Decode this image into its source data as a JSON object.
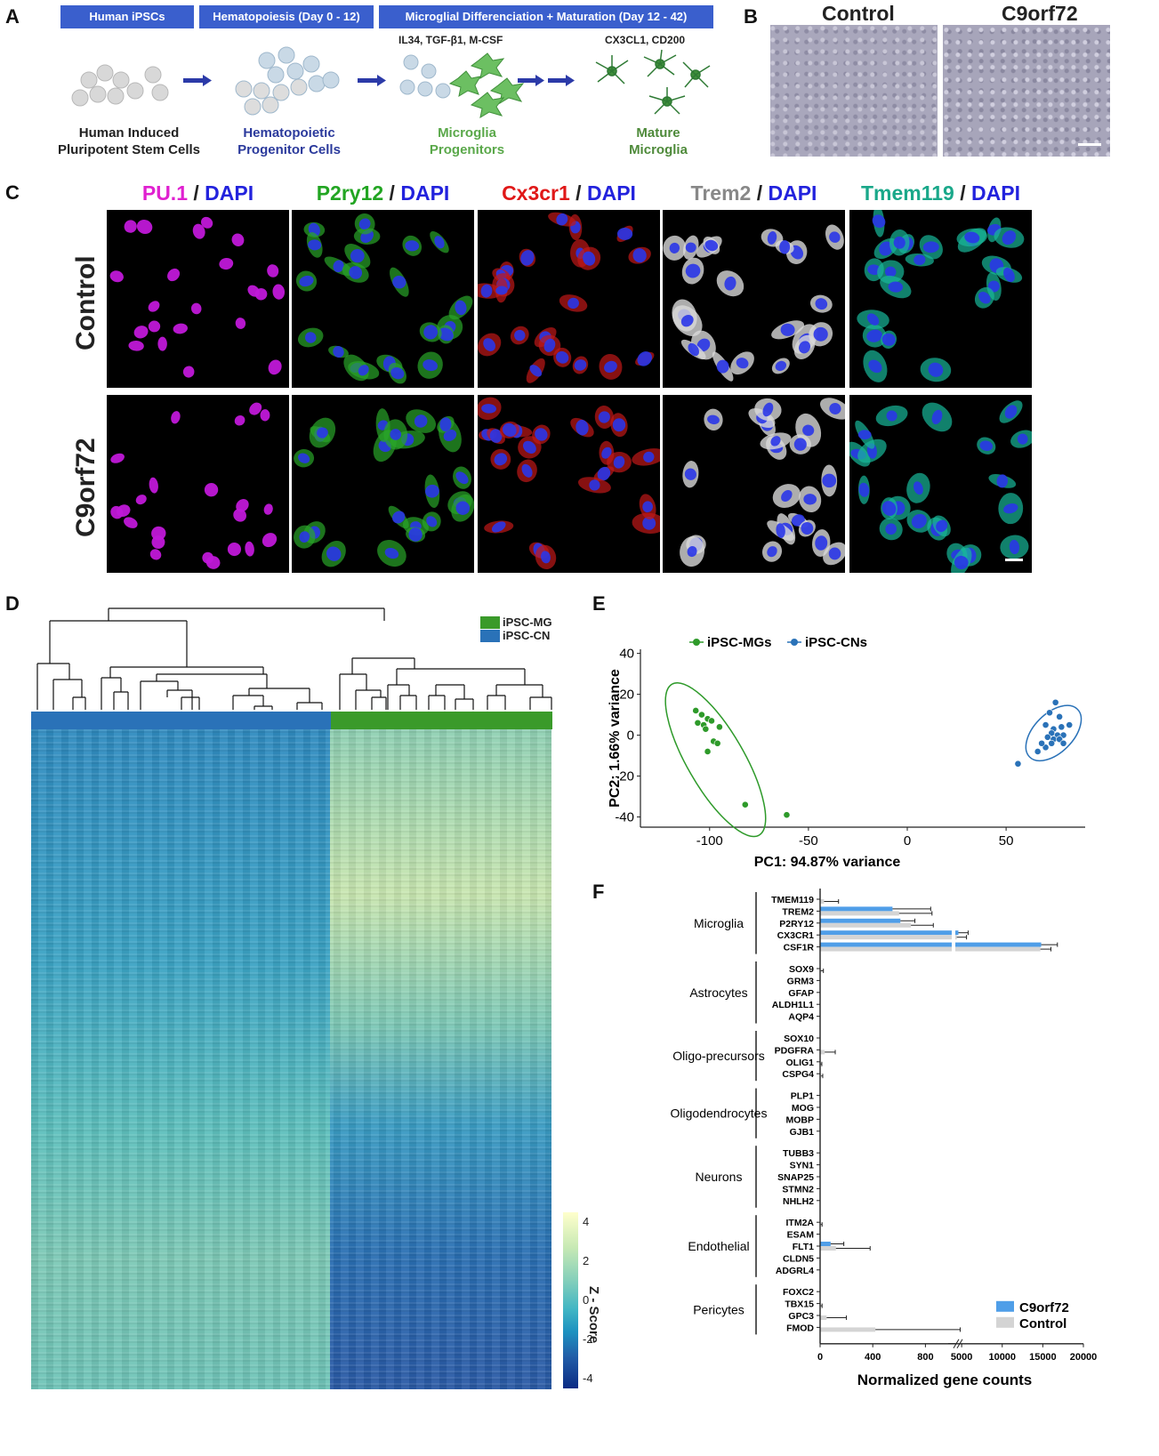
{
  "panels": {
    "A": "A",
    "B": "B",
    "C": "C",
    "D": "D",
    "E": "E",
    "F": "F"
  },
  "panelA": {
    "headers": [
      "Human iPSCs",
      "Hematopoiesis (Day 0 - 12)",
      "Microglial Differenciation + Maturation (Day 12 - 42)"
    ],
    "factors1": "IL34, TGF-β1, M-CSF",
    "factors2": "CX3CL1, CD200",
    "stages": [
      {
        "line1": "Human Induced",
        "line2": "Pluripotent Stem Cells",
        "color": "#333333"
      },
      {
        "line1": "Hematopoietic",
        "line2": "Progenitor Cells",
        "color": "#2b3a9c"
      },
      {
        "line1": "Microglia",
        "line2": "Progenitors",
        "color": "#5aa84a"
      },
      {
        "line1": "Mature",
        "line2": "Microglia",
        "color": "#4e8a3a"
      }
    ]
  },
  "panelB": {
    "control": "Control",
    "c9": "C9orf72"
  },
  "panelC": {
    "channels": [
      {
        "marker": "PU.1",
        "sep": " / ",
        "dapi": "DAPI",
        "color": "#e020d0"
      },
      {
        "marker": "P2ry12",
        "sep": " / ",
        "dapi": "DAPI",
        "color": "#22a522"
      },
      {
        "marker": "Cx3cr1",
        "sep": " / ",
        "dapi": "DAPI",
        "color": "#e01818"
      },
      {
        "marker": "Trem2",
        "sep": " / ",
        "dapi": "DAPI",
        "color": "#888888"
      },
      {
        "marker": "Tmem119",
        "sep": " / ",
        "dapi": "DAPI",
        "color": "#1aa88a"
      }
    ],
    "rows": [
      "Control",
      "C9orf72"
    ]
  },
  "panelD": {
    "legend": [
      {
        "label": "iPSC-MG",
        "color": "#3a9a2a"
      },
      {
        "label": "iPSC-CN",
        "color": "#2a72b8"
      }
    ],
    "colorbar_title": "Z - Score",
    "colorbar_ticks": [
      "4",
      "2",
      "0",
      "-2",
      "-4"
    ]
  },
  "colors": {
    "mg": "#2e9a2a",
    "cn": "#2a72b8",
    "c9": "#4f9ee8",
    "control": "#d4d4d4"
  },
  "chart_data": [
    {
      "type": "scatter",
      "xlabel": "PC1: 94.87% variance",
      "ylabel": "PC2: 1.66% variance",
      "xlim": [
        -135,
        90
      ],
      "ylim": [
        -45,
        42
      ],
      "xticks": [
        -100,
        -50,
        0,
        50
      ],
      "yticks": [
        40,
        20,
        0,
        -20,
        -40
      ],
      "legend_position": "top-left",
      "series": [
        {
          "name": "iPSC-MGs",
          "color": "#2e9a2a",
          "points": [
            [
              -107,
              12
            ],
            [
              -104,
              10
            ],
            [
              -101,
              8
            ],
            [
              -106,
              6
            ],
            [
              -103,
              5
            ],
            [
              -99,
              7
            ],
            [
              -95,
              4
            ],
            [
              -102,
              3
            ],
            [
              -98,
              -3
            ],
            [
              -96,
              -4
            ],
            [
              -101,
              -8
            ],
            [
              -82,
              -34
            ],
            [
              -61,
              -39
            ]
          ]
        },
        {
          "name": "iPSC-CNs",
          "color": "#2a72b8",
          "points": [
            [
              75,
              16
            ],
            [
              72,
              11
            ],
            [
              77,
              9
            ],
            [
              70,
              5
            ],
            [
              74,
              3
            ],
            [
              78,
              4
            ],
            [
              82,
              5
            ],
            [
              73,
              1
            ],
            [
              76,
              0
            ],
            [
              79,
              0
            ],
            [
              71,
              -1
            ],
            [
              74,
              -2
            ],
            [
              77,
              -2
            ],
            [
              73,
              -4
            ],
            [
              79,
              -4
            ],
            [
              70,
              -6
            ],
            [
              68,
              -4
            ],
            [
              66,
              -8
            ],
            [
              56,
              -14
            ]
          ]
        }
      ]
    },
    {
      "type": "bar",
      "orientation": "horizontal",
      "xlabel": "Normalized gene counts",
      "xticks": [
        "0",
        "400",
        "800",
        "5000",
        "10000",
        "15000",
        "20000"
      ],
      "axis_break": [
        1000,
        4000
      ],
      "series_names": [
        "C9orf72",
        "Control"
      ],
      "groups": [
        {
          "name": "Microglia",
          "genes": [
            {
              "gene": "TMEM119",
              "c9": 0,
              "c9_err": 0,
              "ctrl": 30,
              "ctrl_err": 110
            },
            {
              "gene": "TREM2",
              "c9": 550,
              "c9_err": 290,
              "ctrl": 600,
              "ctrl_err": 250
            },
            {
              "gene": "P2RY12",
              "c9": 610,
              "c9_err": 110,
              "ctrl": 690,
              "ctrl_err": 170
            },
            {
              "gene": "CX3CR1",
              "c9": 4600,
              "c9_err": 1200,
              "ctrl": 4400,
              "ctrl_err": 1200
            },
            {
              "gene": "CSF1R",
              "c9": 14800,
              "c9_err": 2000,
              "ctrl": 14700,
              "ctrl_err": 1300
            }
          ]
        },
        {
          "name": "Astrocytes",
          "genes": [
            {
              "gene": "SOX9",
              "c9": 0,
              "c9_err": 0,
              "ctrl": 5,
              "ctrl_err": 20
            },
            {
              "gene": "GRM3",
              "c9": 0,
              "c9_err": 0,
              "ctrl": 0,
              "ctrl_err": 0
            },
            {
              "gene": "GFAP",
              "c9": 0,
              "c9_err": 0,
              "ctrl": 0,
              "ctrl_err": 0
            },
            {
              "gene": "ALDH1L1",
              "c9": 0,
              "c9_err": 0,
              "ctrl": 0,
              "ctrl_err": 0
            },
            {
              "gene": "AQP4",
              "c9": 0,
              "c9_err": 0,
              "ctrl": 0,
              "ctrl_err": 0
            }
          ]
        },
        {
          "name": "Oligo-precursors",
          "genes": [
            {
              "gene": "SOX10",
              "c9": 0,
              "c9_err": 0,
              "ctrl": 0,
              "ctrl_err": 0
            },
            {
              "gene": "PDGFRA",
              "c9": 0,
              "c9_err": 0,
              "ctrl": 35,
              "ctrl_err": 80
            },
            {
              "gene": "OLIG1",
              "c9": 0,
              "c9_err": 0,
              "ctrl": 5,
              "ctrl_err": 8
            },
            {
              "gene": "CSPG4",
              "c9": 0,
              "c9_err": 0,
              "ctrl": 8,
              "ctrl_err": 12
            }
          ]
        },
        {
          "name": "Oligodendrocytes",
          "genes": [
            {
              "gene": "PLP1",
              "c9": 0,
              "c9_err": 0,
              "ctrl": 0,
              "ctrl_err": 0
            },
            {
              "gene": "MOG",
              "c9": 0,
              "c9_err": 0,
              "ctrl": 0,
              "ctrl_err": 0
            },
            {
              "gene": "MOBP",
              "c9": 0,
              "c9_err": 0,
              "ctrl": 0,
              "ctrl_err": 0
            },
            {
              "gene": "GJB1",
              "c9": 0,
              "c9_err": 0,
              "ctrl": 0,
              "ctrl_err": 0
            }
          ]
        },
        {
          "name": "Neurons",
          "genes": [
            {
              "gene": "TUBB3",
              "c9": 0,
              "c9_err": 0,
              "ctrl": 0,
              "ctrl_err": 0
            },
            {
              "gene": "SYN1",
              "c9": 0,
              "c9_err": 0,
              "ctrl": 0,
              "ctrl_err": 0
            },
            {
              "gene": "SNAP25",
              "c9": 0,
              "c9_err": 0,
              "ctrl": 0,
              "ctrl_err": 0
            },
            {
              "gene": "STMN2",
              "c9": 0,
              "c9_err": 0,
              "ctrl": 0,
              "ctrl_err": 0
            },
            {
              "gene": "NHLH2",
              "c9": 0,
              "c9_err": 0,
              "ctrl": 0,
              "ctrl_err": 0
            }
          ]
        },
        {
          "name": "Endothelial",
          "genes": [
            {
              "gene": "ITM2A",
              "c9": 0,
              "c9_err": 0,
              "ctrl": 5,
              "ctrl_err": 10
            },
            {
              "gene": "ESAM",
              "c9": 0,
              "c9_err": 0,
              "ctrl": 0,
              "ctrl_err": 0
            },
            {
              "gene": "FLT1",
              "c9": 80,
              "c9_err": 100,
              "ctrl": 120,
              "ctrl_err": 260
            },
            {
              "gene": "CLDN5",
              "c9": 0,
              "c9_err": 0,
              "ctrl": 0,
              "ctrl_err": 0
            },
            {
              "gene": "ADGRL4",
              "c9": 0,
              "c9_err": 0,
              "ctrl": 0,
              "ctrl_err": 0
            }
          ]
        },
        {
          "name": "Pericytes",
          "genes": [
            {
              "gene": "FOXC2",
              "c9": 0,
              "c9_err": 0,
              "ctrl": 0,
              "ctrl_err": 0
            },
            {
              "gene": "TBX15",
              "c9": 0,
              "c9_err": 0,
              "ctrl": 5,
              "ctrl_err": 10
            },
            {
              "gene": "GPC3",
              "c9": 0,
              "c9_err": 0,
              "ctrl": 50,
              "ctrl_err": 150
            },
            {
              "gene": "FMOD",
              "c9": 0,
              "c9_err": 0,
              "ctrl": 420,
              "ctrl_err": 4400
            }
          ]
        }
      ]
    }
  ]
}
